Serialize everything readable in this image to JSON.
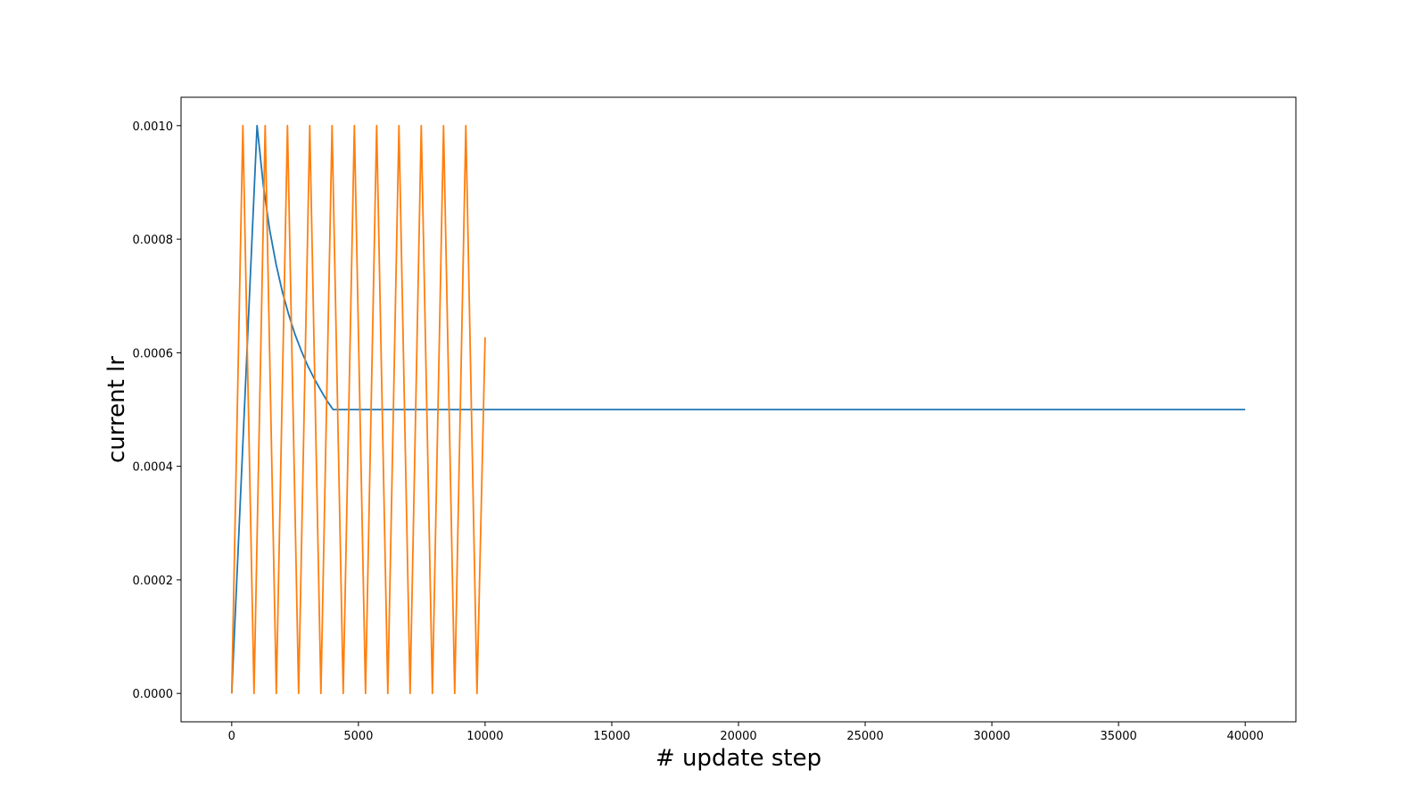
{
  "chart_data": {
    "type": "line",
    "title": "",
    "xlabel": "# update step",
    "ylabel": "current lr",
    "xlim": [
      -2000,
      42000
    ],
    "ylim": [
      -5e-05,
      0.00105
    ],
    "x_ticks": [
      0,
      5000,
      10000,
      15000,
      20000,
      25000,
      30000,
      35000,
      40000
    ],
    "x_tick_labels": [
      "0",
      "5000",
      "10000",
      "15000",
      "20000",
      "25000",
      "30000",
      "35000",
      "40000"
    ],
    "y_ticks": [
      0.0,
      0.0002,
      0.0004,
      0.0006,
      0.0008,
      0.001
    ],
    "y_tick_labels": [
      "0.0000",
      "0.0002",
      "0.0004",
      "0.0006",
      "0.0008",
      "0.0010"
    ],
    "grid": false,
    "legend": "none",
    "series": [
      {
        "color": "#1f77b4",
        "points": [
          [
            0,
            0.0
          ],
          [
            1000,
            0.001
          ],
          [
            1250,
            0.000894
          ],
          [
            1500,
            0.000816
          ],
          [
            1750,
            0.000756
          ],
          [
            2000,
            0.000707
          ],
          [
            2250,
            0.000667
          ],
          [
            2500,
            0.000632
          ],
          [
            2750,
            0.000603
          ],
          [
            3000,
            0.000577
          ],
          [
            3250,
            0.000555
          ],
          [
            3500,
            0.000535
          ],
          [
            3750,
            0.000516
          ],
          [
            4000,
            0.0005
          ],
          [
            40000,
            0.0005
          ]
        ]
      },
      {
        "color": "#ff7f0e",
        "points": [
          [
            0,
            0.0
          ],
          [
            440,
            0.001
          ],
          [
            880,
            0.0
          ],
          [
            1320,
            0.001
          ],
          [
            1760,
            0.0
          ],
          [
            2200,
            0.001
          ],
          [
            2640,
            0.0
          ],
          [
            3080,
            0.001
          ],
          [
            3520,
            0.0
          ],
          [
            3960,
            0.001
          ],
          [
            4400,
            0.0
          ],
          [
            4840,
            0.001
          ],
          [
            5280,
            0.0
          ],
          [
            5720,
            0.001
          ],
          [
            6160,
            0.0
          ],
          [
            6600,
            0.001
          ],
          [
            7040,
            0.0
          ],
          [
            7480,
            0.001
          ],
          [
            7920,
            0.0
          ],
          [
            8360,
            0.001
          ],
          [
            8800,
            0.0
          ],
          [
            9240,
            0.001
          ],
          [
            9680,
            0.0
          ],
          [
            10000,
            0.000627
          ]
        ]
      }
    ]
  }
}
